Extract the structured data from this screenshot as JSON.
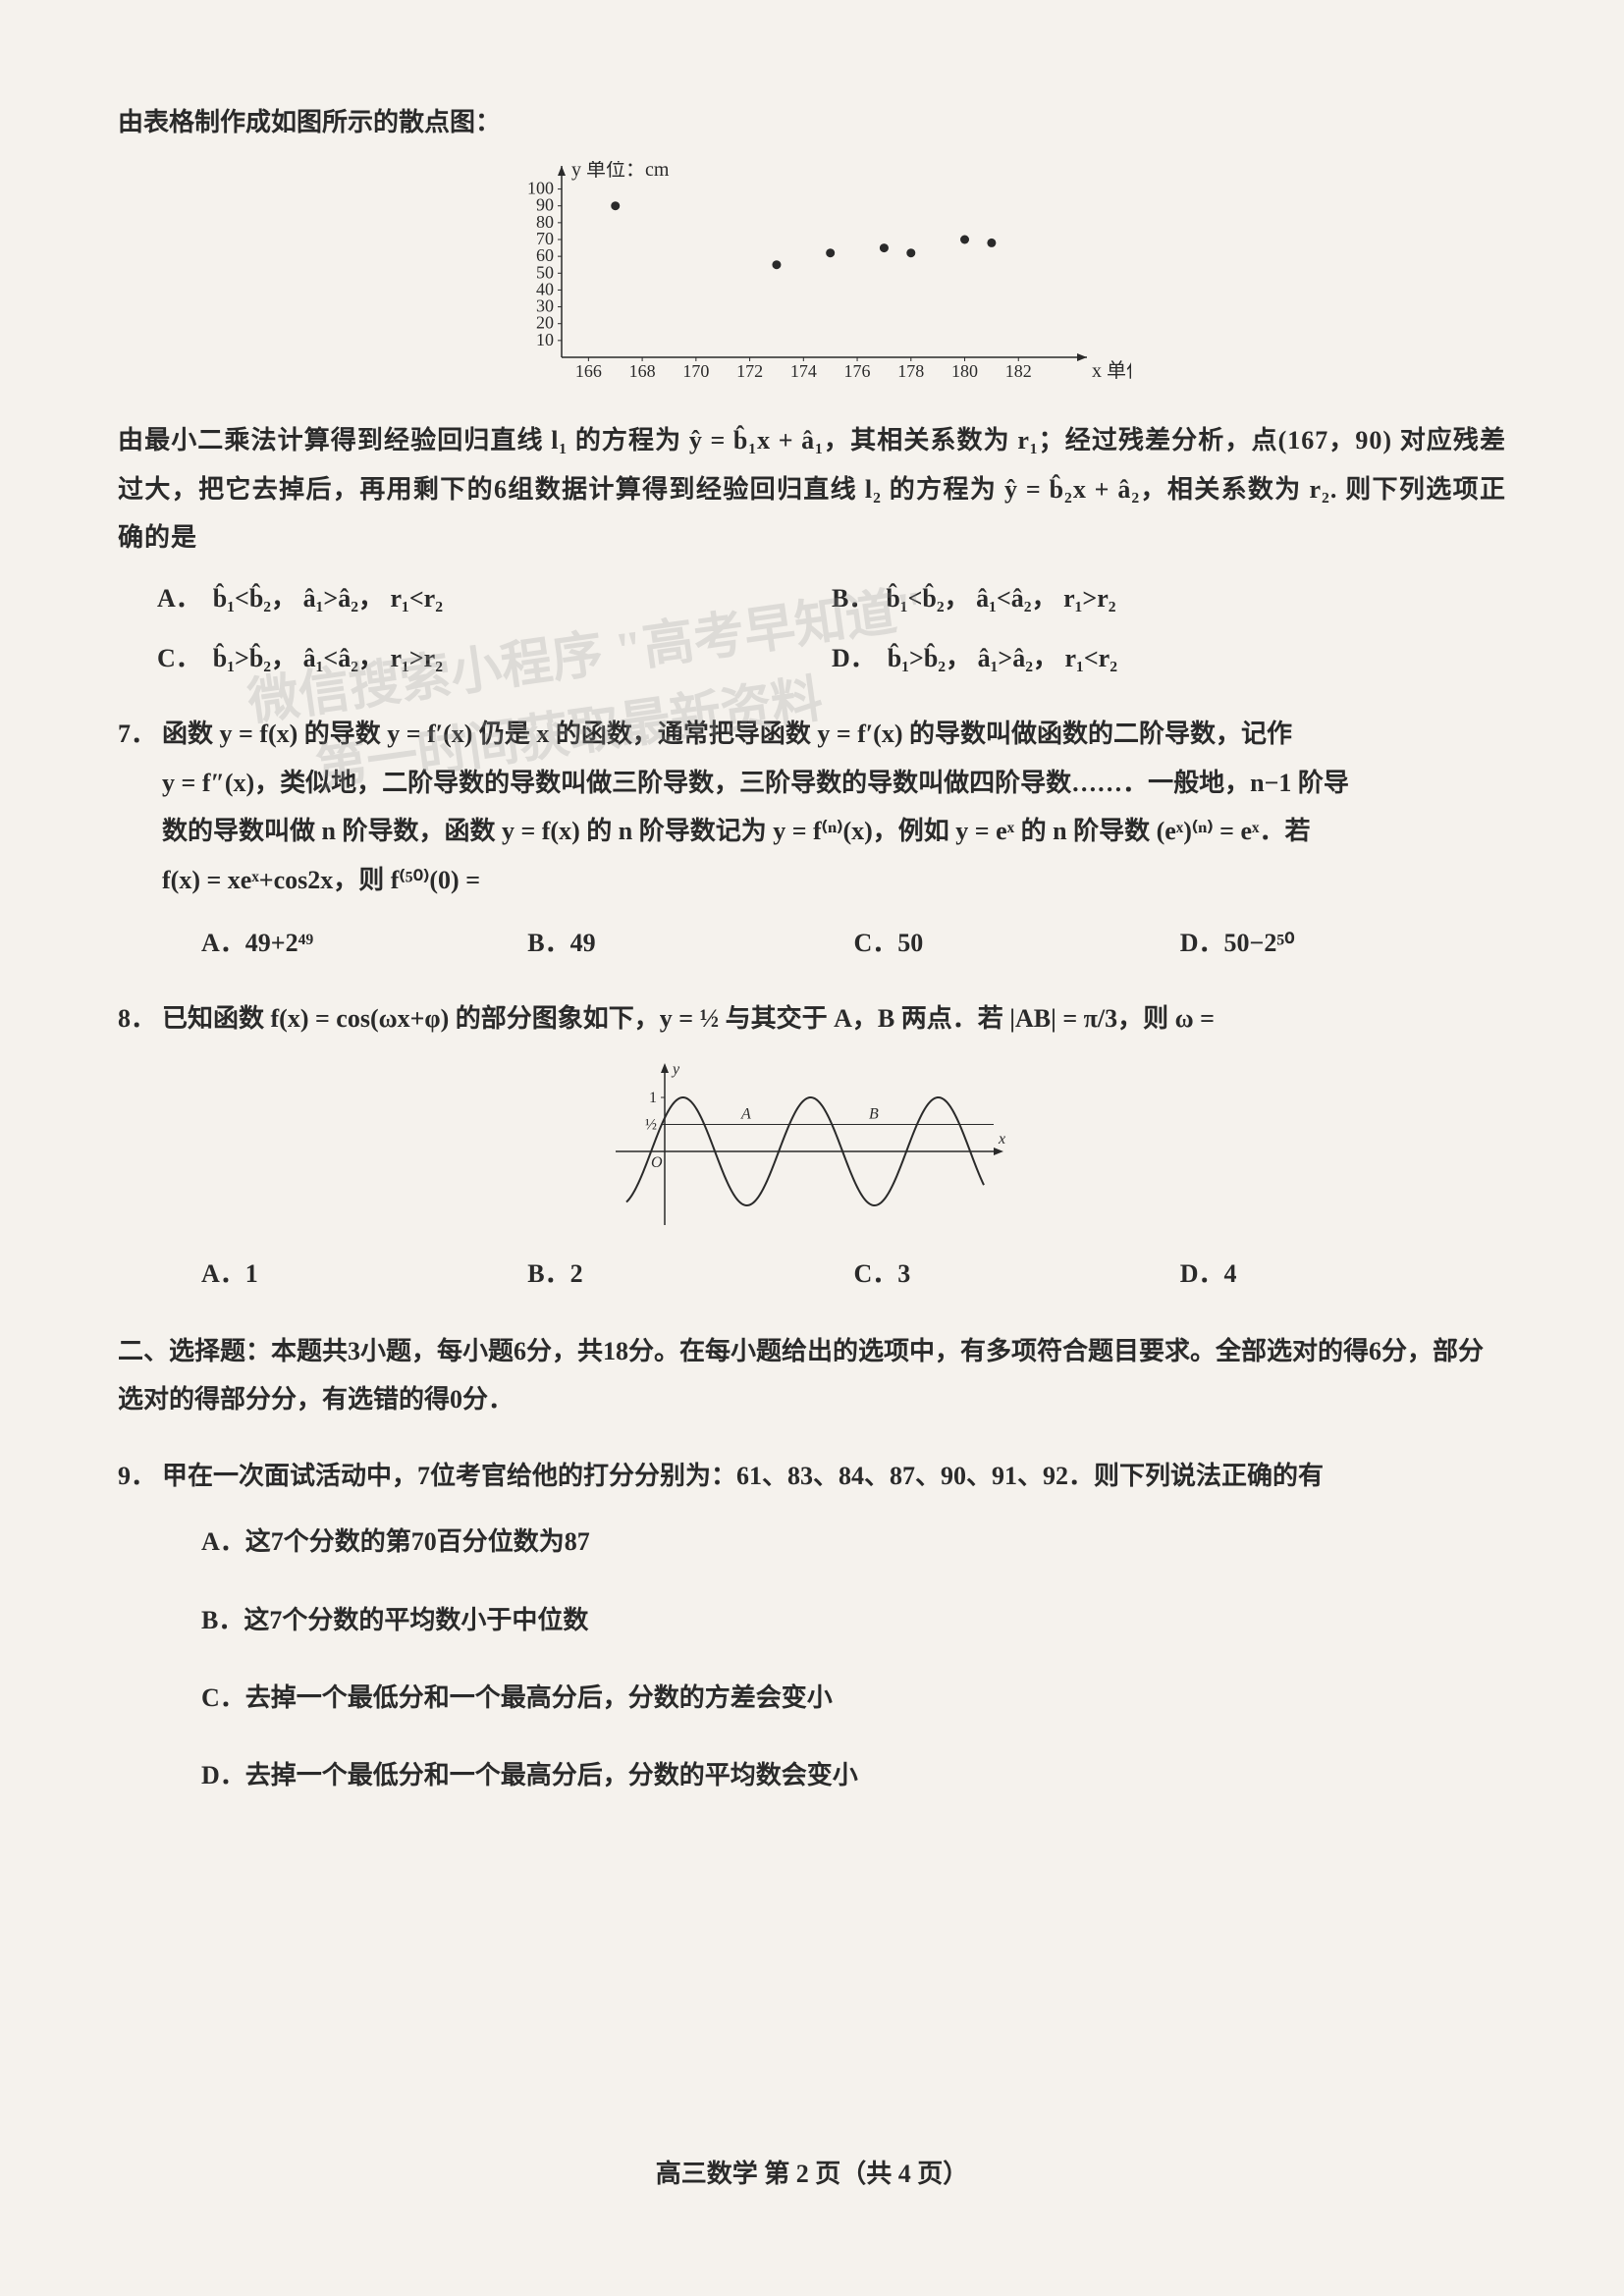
{
  "intro": "由表格制作成如图所示的散点图：",
  "scatter": {
    "type": "scatter",
    "x_label": "x 单位：kg",
    "y_label": "y 单位：cm",
    "x_ticks": [
      166,
      168,
      170,
      172,
      174,
      176,
      178,
      180,
      182
    ],
    "y_ticks": [
      10,
      20,
      30,
      40,
      50,
      60,
      70,
      80,
      90,
      100
    ],
    "xlim": [
      165,
      184
    ],
    "ylim": [
      0,
      105
    ],
    "points": [
      {
        "x": 167,
        "y": 90
      },
      {
        "x": 173,
        "y": 55
      },
      {
        "x": 175,
        "y": 62
      },
      {
        "x": 177,
        "y": 65
      },
      {
        "x": 178,
        "y": 62
      },
      {
        "x": 180,
        "y": 70
      },
      {
        "x": 181,
        "y": 68
      }
    ],
    "point_color": "#2a2a2a",
    "point_radius": 4.5,
    "axis_color": "#2a2a2a",
    "background_color": "#f5f2ed",
    "tick_fontsize": 18,
    "label_fontsize": 20
  },
  "context_text": "由最小二乘法计算得到经验回归直线 l₁ 的方程为 ŷ = b̂₁x + â₁，其相关系数为 r₁；经过残差分析，点(167，90) 对应残差过大，把它去掉后，再用剩下的6组数据计算得到经验回归直线 l₂ 的方程为 ŷ = b̂₂x + â₂，相关系数为 r₂. 则下列选项正确的是",
  "q6_options": {
    "A": "b̂₁<b̂₂，  â₁>â₂，  r₁<r₂",
    "B": "b̂₁<b̂₂，  â₁<â₂，  r₁>r₂",
    "C": "b̂₁>b̂₂，  â₁<â₂，  r₁>r₂",
    "D": "b̂₁>b̂₂，  â₁>â₂，  r₁<r₂"
  },
  "q7": {
    "num": "7．",
    "line1": "函数 y = f(x) 的导数 y = f′(x) 仍是 x 的函数，通常把导函数 y = f′(x) 的导数叫做函数的二阶导数，记作",
    "line2": "y = f″(x)，类似地，二阶导数的导数叫做三阶导数，三阶导数的导数叫做四阶导数……．一般地，n−1 阶导",
    "line3": "数的导数叫做 n 阶导数，函数 y = f(x) 的 n 阶导数记为 y = f⁽ⁿ⁾(x)，例如 y = eˣ 的 n 阶导数 (eˣ)⁽ⁿ⁾ = eˣ．若",
    "line4": "f(x) = xeˣ+cos2x，则 f⁽⁵⁰⁾(0) =",
    "options": {
      "A": "49+2⁴⁹",
      "B": "49",
      "C": "50",
      "D": "50−2⁵⁰"
    }
  },
  "q8": {
    "num": "8．",
    "text": "已知函数 f(x) = cos(ωx+φ) 的部分图象如下，y = ½ 与其交于 A，B 两点．若 |AB| = π/3，则 ω =",
    "graph": {
      "type": "cosine",
      "axis_color": "#2a2a2a",
      "curve_color": "#2a2a2a",
      "line_width": 2,
      "y_ticks": [
        "1",
        "½"
      ],
      "labels": {
        "A": "A",
        "B": "B",
        "O": "O",
        "x": "x",
        "y": "y"
      },
      "hline_y": 0.5,
      "periods": 2.5,
      "xlim": [
        -0.3,
        2.5
      ],
      "ylim": [
        -1.2,
        1.3
      ]
    },
    "options": {
      "A": "1",
      "B": "2",
      "C": "3",
      "D": "4"
    }
  },
  "section2": {
    "header": "二、选择题：本题共3小题，每小题6分，共18分。在每小题给出的选项中，有多项符合题目要求。全部选对的得6分，部分选对的得部分分，有选错的得0分．"
  },
  "q9": {
    "num": "9．",
    "text": "甲在一次面试活动中，7位考官给他的打分分别为：61、83、84、87、90、91、92．则下列说法正确的有",
    "options": {
      "A": "这7个分数的第70百分位数为87",
      "B": "这7个分数的平均数小于中位数",
      "C": "去掉一个最低分和一个最高分后，分数的方差会变小",
      "D": "去掉一个最低分和一个最高分后，分数的平均数会变小"
    }
  },
  "footer": "高三数学  第 2 页（共 4 页）",
  "watermark1": "微信搜索小程序 \"高考早知道\"",
  "watermark2": "第一时间获取最新资料",
  "labels": {
    "A": "A．",
    "B": "B．",
    "C": "C．",
    "D": "D．"
  }
}
